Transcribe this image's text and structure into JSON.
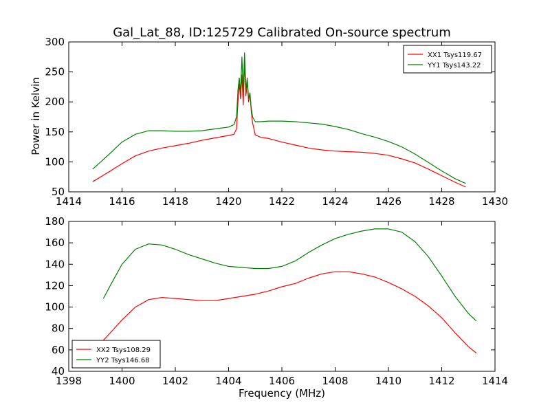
{
  "chart_data": [
    {
      "type": "line",
      "title": "Gal_Lat_88, ID:125729 Calibrated On-source spectrum",
      "xlabel": "",
      "ylabel": "Power in Kelvin",
      "xlim": [
        1414,
        1430
      ],
      "ylim": [
        50,
        300
      ],
      "x_ticks": [
        1414,
        1416,
        1418,
        1420,
        1422,
        1424,
        1426,
        1428,
        1430
      ],
      "x_tick_labels": [
        "1414",
        "1416",
        "1418",
        "1420",
        "1422",
        "1424",
        "1426",
        "1428",
        "1430"
      ],
      "y_ticks": [
        50,
        100,
        150,
        200,
        250,
        300
      ],
      "y_tick_labels": [
        "50",
        "100",
        "150",
        "200",
        "250",
        "300"
      ],
      "grid": false,
      "legend_position": "top-right",
      "series": [
        {
          "name": "XX1 Tsys119.67",
          "color": "#ff0000",
          "x": [
            1414.9,
            1415.5,
            1416.0,
            1416.5,
            1417.0,
            1417.5,
            1418.0,
            1418.5,
            1419.0,
            1419.5,
            1420.0,
            1420.2,
            1420.3,
            1420.35,
            1420.4,
            1420.45,
            1420.5,
            1420.55,
            1420.6,
            1420.65,
            1420.7,
            1420.75,
            1420.8,
            1420.85,
            1420.9,
            1421.0,
            1421.2,
            1421.5,
            1422.0,
            1422.5,
            1423.0,
            1423.5,
            1424.0,
            1424.5,
            1425.0,
            1425.5,
            1426.0,
            1426.5,
            1427.0,
            1427.5,
            1428.0,
            1428.5,
            1428.9
          ],
          "y": [
            67,
            83,
            97,
            110,
            118,
            123,
            127,
            131,
            136,
            140,
            144,
            146,
            155,
            200,
            230,
            205,
            245,
            195,
            265,
            210,
            235,
            200,
            215,
            185,
            165,
            145,
            141,
            139,
            133,
            128,
            123,
            120,
            118,
            117,
            116,
            114,
            111,
            105,
            98,
            88,
            77,
            66,
            58
          ]
        },
        {
          "name": "YY1 Tsys143.22",
          "color": "#008000",
          "x": [
            1414.9,
            1415.5,
            1416.0,
            1416.5,
            1417.0,
            1417.5,
            1418.0,
            1418.5,
            1419.0,
            1419.5,
            1420.0,
            1420.2,
            1420.3,
            1420.35,
            1420.4,
            1420.45,
            1420.5,
            1420.55,
            1420.6,
            1420.65,
            1420.7,
            1420.75,
            1420.8,
            1420.85,
            1420.9,
            1421.0,
            1421.2,
            1421.5,
            1422.0,
            1422.5,
            1423.0,
            1423.5,
            1424.0,
            1424.5,
            1425.0,
            1425.5,
            1426.0,
            1426.5,
            1427.0,
            1427.5,
            1428.0,
            1428.5,
            1428.9
          ],
          "y": [
            88,
            112,
            133,
            146,
            152,
            152,
            151,
            151,
            152,
            155,
            158,
            162,
            175,
            220,
            240,
            215,
            275,
            215,
            282,
            220,
            240,
            205,
            215,
            190,
            175,
            167,
            167,
            168,
            168,
            167,
            165,
            163,
            159,
            154,
            147,
            141,
            134,
            125,
            113,
            99,
            85,
            72,
            64
          ]
        }
      ]
    },
    {
      "type": "line",
      "title": "",
      "xlabel": "Frequency (MHz)",
      "ylabel": "",
      "xlim": [
        1398,
        1414
      ],
      "ylim": [
        40,
        180
      ],
      "x_ticks": [
        1398,
        1400,
        1402,
        1404,
        1406,
        1408,
        1410,
        1412,
        1414
      ],
      "x_tick_labels": [
        "1398",
        "1400",
        "1402",
        "1404",
        "1406",
        "1408",
        "1410",
        "1412",
        "1414"
      ],
      "y_ticks": [
        40,
        60,
        80,
        100,
        120,
        140,
        160,
        180
      ],
      "y_tick_labels": [
        "40",
        "60",
        "80",
        "100",
        "120",
        "140",
        "160",
        "180"
      ],
      "grid": false,
      "legend_position": "bottom-left",
      "series": [
        {
          "name": "XX2 Tsys108.29",
          "color": "#ff0000",
          "x": [
            1399.3,
            1399.6,
            1400.0,
            1400.5,
            1401.0,
            1401.5,
            1402.0,
            1402.5,
            1403.0,
            1403.5,
            1404.0,
            1404.5,
            1405.0,
            1405.5,
            1406.0,
            1406.5,
            1407.0,
            1407.5,
            1408.0,
            1408.5,
            1409.0,
            1409.5,
            1410.0,
            1410.5,
            1411.0,
            1411.5,
            1412.0,
            1412.5,
            1413.0,
            1413.3
          ],
          "y": [
            69,
            77,
            88,
            100,
            107,
            109,
            108,
            107,
            106,
            106,
            108,
            110,
            112,
            115,
            119,
            122,
            127,
            131,
            133,
            133,
            131,
            128,
            123,
            117,
            110,
            101,
            90,
            76,
            63,
            57
          ]
        },
        {
          "name": "YY2 Tsys146.68",
          "color": "#008000",
          "x": [
            1399.3,
            1399.6,
            1400.0,
            1400.5,
            1401.0,
            1401.5,
            1402.0,
            1402.5,
            1403.0,
            1403.5,
            1404.0,
            1404.5,
            1405.0,
            1405.5,
            1406.0,
            1406.5,
            1407.0,
            1407.5,
            1408.0,
            1408.5,
            1409.0,
            1409.5,
            1410.0,
            1410.5,
            1411.0,
            1411.5,
            1412.0,
            1412.5,
            1413.0,
            1413.3
          ],
          "y": [
            108,
            122,
            140,
            154,
            159,
            158,
            154,
            149,
            145,
            141,
            138,
            137,
            136,
            136,
            138,
            143,
            151,
            158,
            164,
            168,
            171,
            173,
            173,
            170,
            161,
            147,
            129,
            110,
            94,
            87
          ]
        }
      ]
    }
  ]
}
